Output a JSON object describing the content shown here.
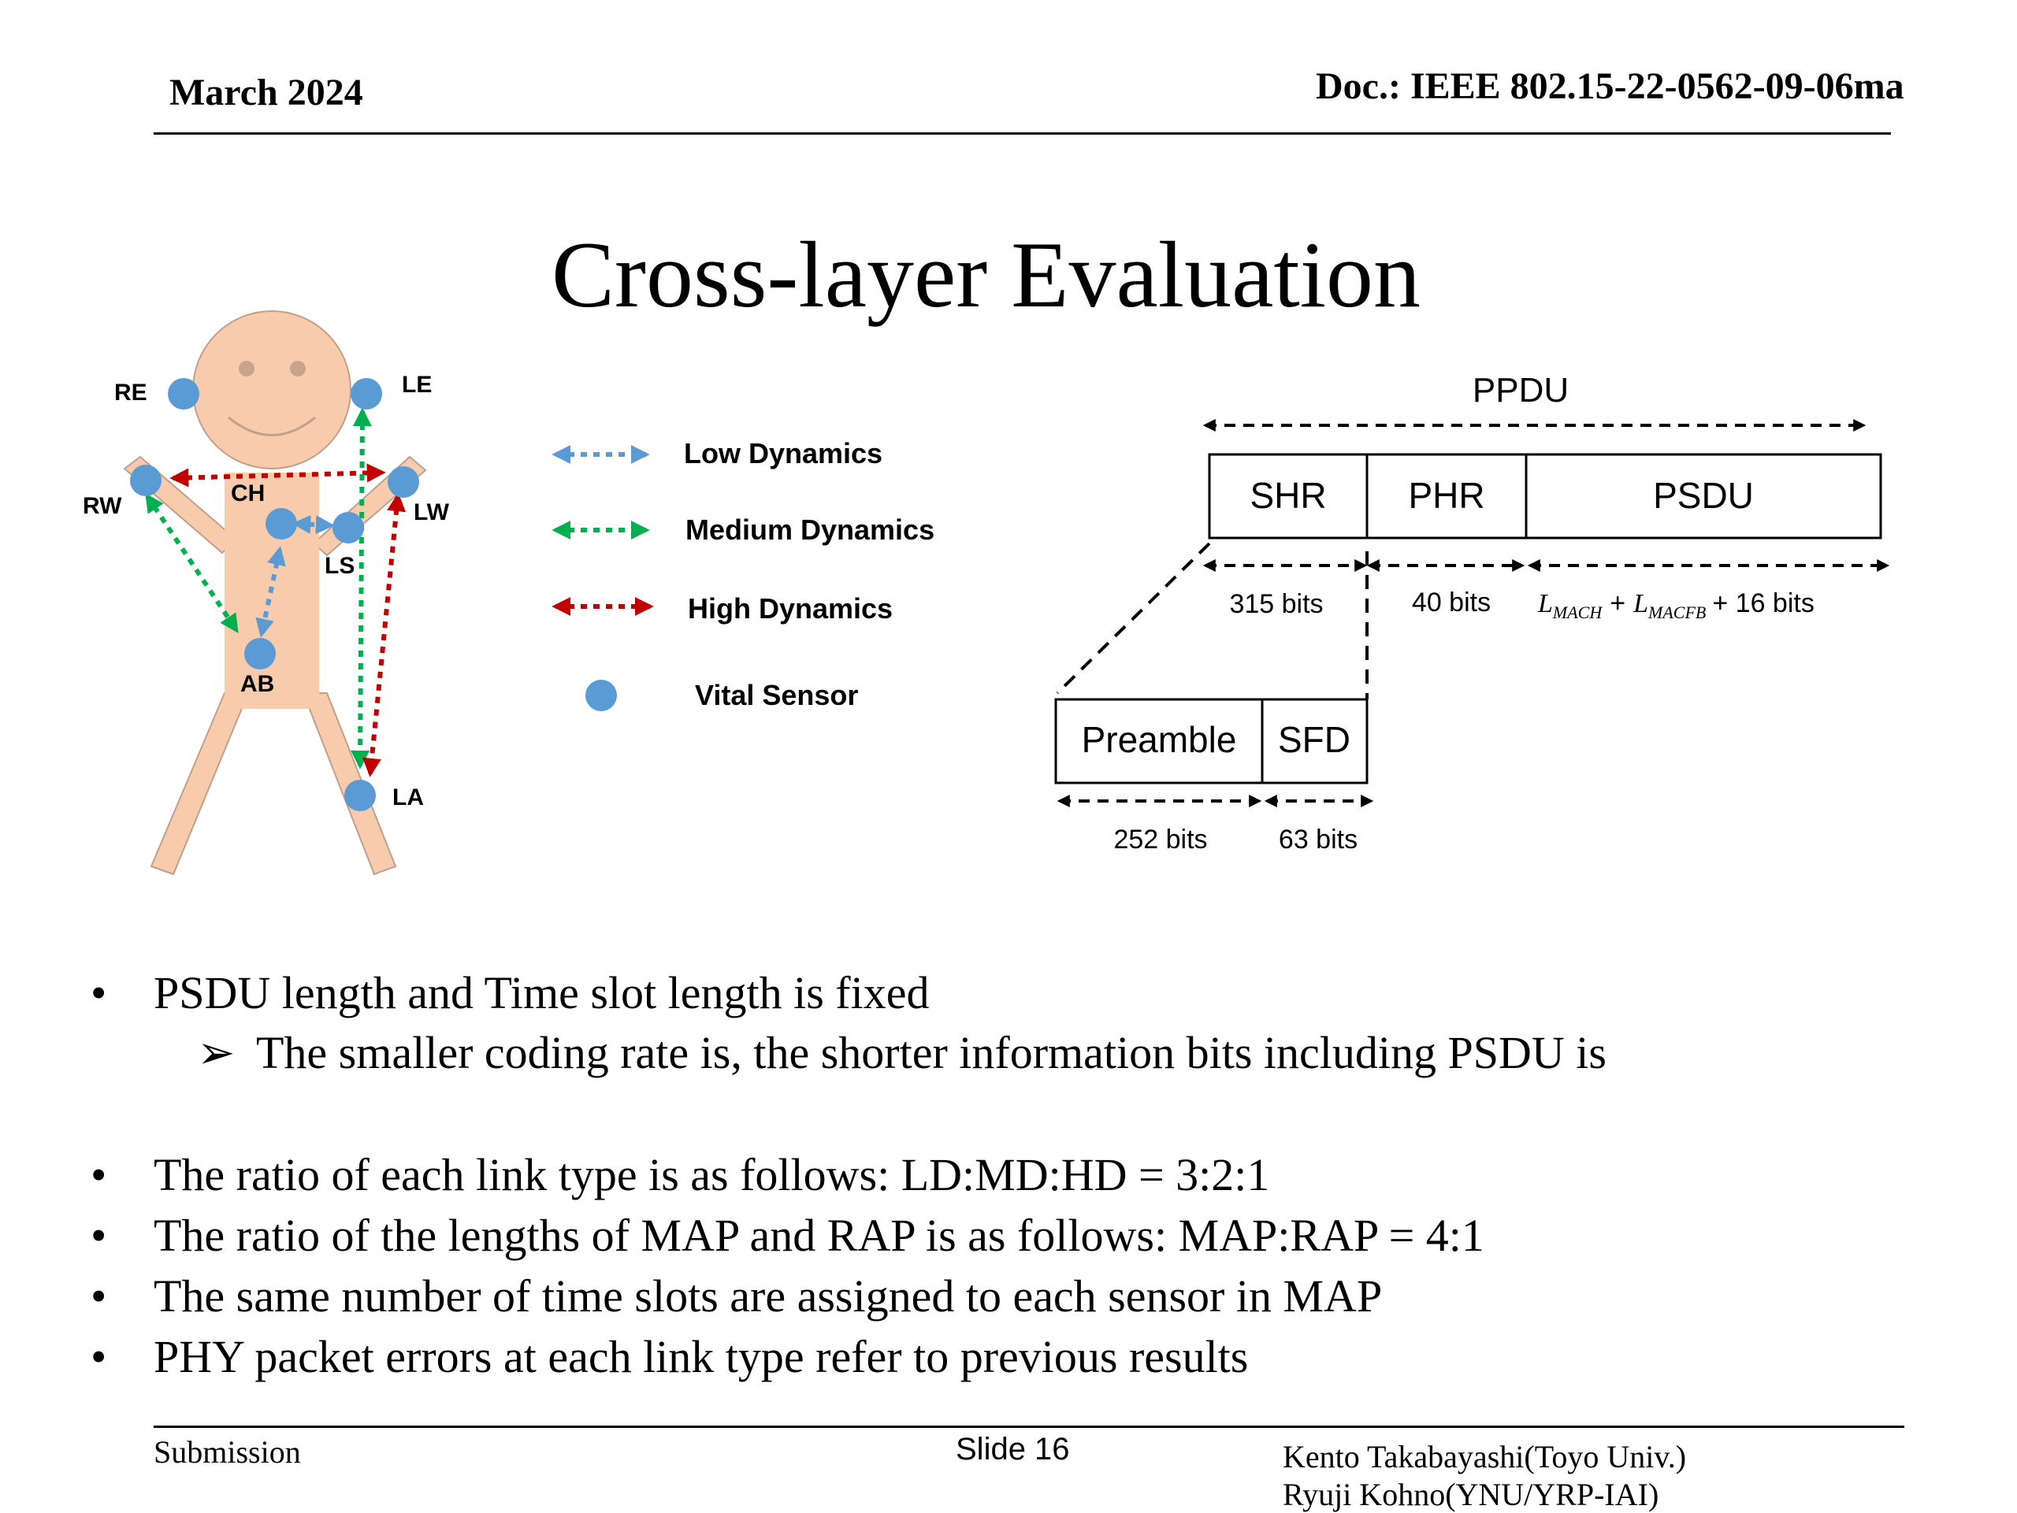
{
  "header": {
    "date": "March 2024",
    "doc": "Doc.: IEEE 802.15-22-0562-09-06ma"
  },
  "title": "Cross-layer Evaluation",
  "body_figure": {
    "sensors": {
      "re": "RE",
      "le": "LE",
      "rw": "RW",
      "lw": "LW",
      "ch": "CH",
      "ls": "LS",
      "ab": "AB",
      "la": "LA"
    },
    "legend": {
      "low": "Low Dynamics",
      "medium": "Medium Dynamics",
      "high": "High Dynamics",
      "sensor": "Vital Sensor"
    },
    "colors": {
      "low": "#5b9bd5",
      "medium": "#00b050",
      "high": "#c00000",
      "skin": "#f8cbad",
      "sensor": "#5b9bd5"
    }
  },
  "frame_figure": {
    "ppdu": "PPDU",
    "shr": "SHR",
    "phr": "PHR",
    "psdu": "PSDU",
    "shr_bits": "315 bits",
    "phr_bits": "40 bits",
    "psdu_bits_l1": "L",
    "psdu_bits_s1": "MACH",
    "psdu_bits_plus1": "+",
    "psdu_bits_l2": "L",
    "psdu_bits_s2": "MACFB",
    "psdu_bits_tail": "+ 16 bits",
    "preamble": "Preamble",
    "sfd": "SFD",
    "preamble_bits": "252 bits",
    "sfd_bits": "63 bits"
  },
  "bullets": {
    "b1": "PSDU length and Time slot length is fixed",
    "b1_sub_marker": "➢",
    "b1_sub": "The smaller coding rate is, the shorter information bits including PSDU is",
    "b2": "The ratio of each link type is as follows: LD:MD:HD = 3:2:1",
    "b3": "The ratio of the lengths of MAP and RAP is as follows: MAP:RAP = 4:1",
    "b4": "The same number of time slots are assigned to each sensor in MAP",
    "b5": "PHY packet errors at each link type refer to previous results",
    "marker": "•"
  },
  "footer": {
    "submission": "Submission",
    "slide": "Slide 16",
    "author1": "Kento Takabayashi(Toyo Univ.)",
    "author2": "Ryuji Kohno(YNU/YRP-IAI)"
  }
}
